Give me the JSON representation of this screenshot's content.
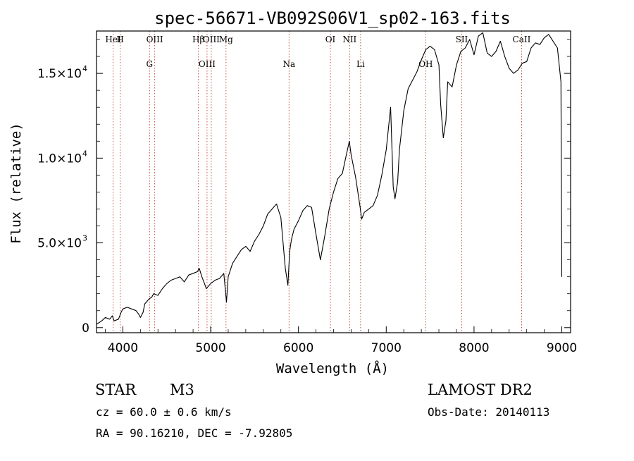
{
  "chart_data": {
    "type": "line",
    "title": "spec-56671-VB092S06V1_sp02-163.fits",
    "xlabel": "Wavelength (Å)",
    "ylabel": "Flux (relative)",
    "xlim": [
      3700,
      9100
    ],
    "ylim": [
      -300,
      17500
    ],
    "grid": false,
    "x_ticks": [
      {
        "value": 4000,
        "label": "4000"
      },
      {
        "value": 5000,
        "label": "5000"
      },
      {
        "value": 6000,
        "label": "6000"
      },
      {
        "value": 7000,
        "label": "7000"
      },
      {
        "value": 8000,
        "label": "8000"
      },
      {
        "value": 9000,
        "label": "9000"
      }
    ],
    "y_ticks": [
      {
        "value": 0,
        "mant": "0",
        "exp": ""
      },
      {
        "value": 5000,
        "mant": "5.0×10",
        "exp": "3"
      },
      {
        "value": 10000,
        "mant": "1.0×10",
        "exp": "4"
      },
      {
        "value": 15000,
        "mant": "1.5×10",
        "exp": "4"
      }
    ],
    "series": [
      {
        "x": [
          3700,
          3760,
          3800,
          3850,
          3880,
          3900,
          3950,
          3980,
          4000,
          4050,
          4100,
          4150,
          4180,
          4200,
          4230,
          4250,
          4300,
          4330,
          4350,
          4400,
          4450,
          4500,
          4550,
          4600,
          4650,
          4700,
          4750,
          4800,
          4850,
          4870,
          4900,
          4930,
          4950,
          5000,
          5050,
          5100,
          5150,
          5180,
          5200,
          5250,
          5300,
          5350,
          5400,
          5450,
          5500,
          5550,
          5600,
          5650,
          5700,
          5750,
          5800,
          5850,
          5880,
          5900,
          5920,
          5950,
          6000,
          6050,
          6100,
          6150,
          6200,
          6250,
          6300,
          6350,
          6400,
          6450,
          6500,
          6550,
          6580,
          6600,
          6650,
          6700,
          6720,
          6750,
          6800,
          6850,
          6900,
          6950,
          7000,
          7030,
          7050,
          7080,
          7100,
          7130,
          7150,
          7200,
          7250,
          7300,
          7350,
          7400,
          7450,
          7500,
          7550,
          7600,
          7620,
          7650,
          7680,
          7700,
          7750,
          7800,
          7850,
          7900,
          7950,
          8000,
          8050,
          8100,
          8150,
          8200,
          8250,
          8300,
          8350,
          8400,
          8450,
          8500,
          8550,
          8600,
          8650,
          8700,
          8750,
          8800,
          8850,
          8900,
          8950,
          8990,
          9000
        ],
        "y": [
          200,
          400,
          600,
          500,
          700,
          400,
          500,
          900,
          1100,
          1200,
          1100,
          1000,
          800,
          600,
          900,
          1400,
          1700,
          1800,
          2000,
          1900,
          2300,
          2600,
          2800,
          2900,
          3000,
          2700,
          3100,
          3200,
          3300,
          3500,
          3000,
          2600,
          2300,
          2600,
          2800,
          2900,
          3200,
          1500,
          3000,
          3800,
          4200,
          4600,
          4800,
          4500,
          5100,
          5500,
          6000,
          6700,
          7000,
          7300,
          6500,
          3500,
          2500,
          4500,
          5200,
          5800,
          6300,
          6900,
          7200,
          7100,
          5500,
          4000,
          5400,
          7000,
          8000,
          8800,
          9100,
          10300,
          11000,
          10200,
          8900,
          7200,
          6400,
          6800,
          7000,
          7200,
          7800,
          9000,
          10500,
          12000,
          13000,
          8300,
          7600,
          8600,
          10500,
          12800,
          14100,
          14600,
          15100,
          15800,
          16400,
          16600,
          16400,
          15500,
          13200,
          11200,
          12200,
          14500,
          14200,
          15500,
          16300,
          16500,
          17000,
          16100,
          17200,
          17400,
          16200,
          16000,
          16300,
          16900,
          16000,
          15300,
          15000,
          15200,
          15600,
          15700,
          16500,
          16800,
          16700,
          17100,
          17300,
          16900,
          16500,
          14500,
          3000
        ]
      }
    ],
    "lines": [
      {
        "x": 3889,
        "top": "HeI",
        "bot": ""
      },
      {
        "x": 3970,
        "top": "H",
        "bot": ""
      },
      {
        "x": 4304,
        "top": "",
        "bot": "G"
      },
      {
        "x": 4363,
        "top": "OIII",
        "bot": ""
      },
      {
        "x": 4861,
        "top": "Hβ",
        "bot": ""
      },
      {
        "x": 4959,
        "top": "",
        "bot": "OIII"
      },
      {
        "x": 5007,
        "top": "OIII",
        "bot": ""
      },
      {
        "x": 5175,
        "top": "Mg",
        "bot": ""
      },
      {
        "x": 5893,
        "top": "",
        "bot": "Na"
      },
      {
        "x": 6364,
        "top": "OI",
        "bot": ""
      },
      {
        "x": 6583,
        "top": "NII",
        "bot": ""
      },
      {
        "x": 6708,
        "top": "",
        "bot": "Li"
      },
      {
        "x": 7450,
        "top": "",
        "bot": "OH"
      },
      {
        "x": 7860,
        "top": "SII",
        "bot": ""
      },
      {
        "x": 8542,
        "top": "CaII",
        "bot": ""
      }
    ]
  },
  "info": {
    "object_class": "STAR",
    "subclass": "M3",
    "survey": "LAMOST DR2",
    "cz": "cz = 60.0 ± 0.6 km/s",
    "obs_date": "Obs-Date: 20140113",
    "radec": "RA =  90.16210, DEC =  -7.92805"
  }
}
